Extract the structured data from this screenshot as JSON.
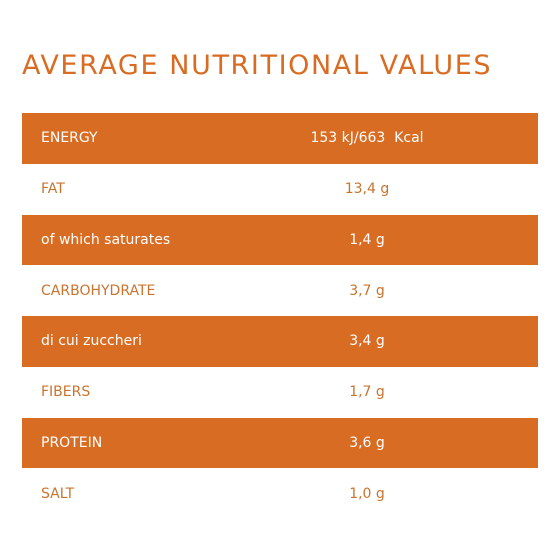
{
  "title": "AVERAGE NUTRITIONAL VALUES",
  "colors": {
    "accent": "#d96c23",
    "light_text": "#c8742f",
    "background": "#ffffff"
  },
  "rows": [
    {
      "label": "ENERGY",
      "value": "153 kJ/663  Kcal"
    },
    {
      "label": "FAT",
      "value": "13,4 g"
    },
    {
      "label": "of which saturates",
      "value": "1,4 g"
    },
    {
      "label": "CARBOHYDRATE",
      "value": "3,7 g"
    },
    {
      "label": "di cui zuccheri",
      "value": "3,4 g"
    },
    {
      "label": "FIBERS",
      "value": "1,7 g"
    },
    {
      "label": "PROTEIN",
      "value": "3,6 g"
    },
    {
      "label": "SALT",
      "value": "1,0 g"
    }
  ]
}
